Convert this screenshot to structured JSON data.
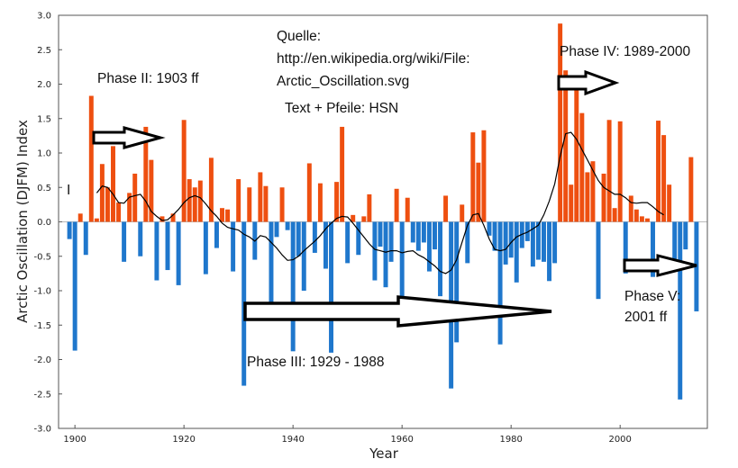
{
  "chart_data": {
    "type": "bar",
    "xlabel": "Year",
    "ylabel": "Arctic Oscillation (DJFM) Index",
    "xlim": [
      1897,
      2016
    ],
    "ylim": [
      -3.0,
      3.0
    ],
    "x_ticks": [
      1900,
      1920,
      1940,
      1960,
      1980,
      2000
    ],
    "y_ticks": [
      3.0,
      2.5,
      2.0,
      1.5,
      1.0,
      0.5,
      0.0,
      -0.5,
      -1.0,
      -1.5,
      -2.0,
      -2.5,
      -3.0
    ],
    "y_tick_labels": [
      "3.0",
      "2.5",
      "2.0",
      "1.5",
      "1.0",
      "0.5",
      "0.0",
      "-0.5",
      "-1.0",
      "-1.5",
      "-2.0",
      "-2.5",
      "-3.0"
    ],
    "grid": false,
    "colors": {
      "positive": "#ee4f10",
      "negative": "#1f77cc",
      "smooth": "#000000",
      "arrow_fill": "#ffffff",
      "arrow_stroke": "#000000"
    },
    "years": [
      1899,
      1900,
      1901,
      1902,
      1903,
      1904,
      1905,
      1906,
      1907,
      1908,
      1909,
      1910,
      1911,
      1912,
      1913,
      1914,
      1915,
      1916,
      1917,
      1918,
      1919,
      1920,
      1921,
      1922,
      1923,
      1924,
      1925,
      1926,
      1927,
      1928,
      1929,
      1930,
      1931,
      1932,
      1933,
      1934,
      1935,
      1936,
      1937,
      1938,
      1939,
      1940,
      1941,
      1942,
      1943,
      1944,
      1945,
      1946,
      1947,
      1948,
      1949,
      1950,
      1951,
      1952,
      1953,
      1954,
      1955,
      1956,
      1957,
      1958,
      1959,
      1960,
      1961,
      1962,
      1963,
      1964,
      1965,
      1966,
      1967,
      1968,
      1969,
      1970,
      1971,
      1972,
      1973,
      1974,
      1975,
      1976,
      1977,
      1978,
      1979,
      1980,
      1981,
      1982,
      1983,
      1984,
      1985,
      1986,
      1987,
      1988,
      1989,
      1990,
      1991,
      1992,
      1993,
      1994,
      1995,
      1996,
      1997,
      1998,
      1999,
      2000,
      2001,
      2002,
      2003,
      2004,
      2005,
      2006,
      2007,
      2008,
      2009,
      2010,
      2011,
      2012,
      2013,
      2014
    ],
    "values": [
      -0.25,
      -1.87,
      0.12,
      -0.48,
      1.83,
      0.05,
      0.84,
      0.5,
      1.1,
      0.28,
      -0.58,
      0.42,
      0.7,
      -0.5,
      1.38,
      0.9,
      -0.85,
      0.08,
      -0.7,
      0.12,
      -0.92,
      1.48,
      0.62,
      0.5,
      0.6,
      -0.76,
      0.93,
      -0.38,
      0.2,
      0.18,
      -0.72,
      0.62,
      -2.38,
      0.5,
      -0.55,
      0.72,
      0.52,
      -1.28,
      -0.22,
      0.5,
      -0.12,
      -1.88,
      -0.5,
      -1.0,
      0.85,
      -0.45,
      0.56,
      -0.68,
      -1.9,
      0.58,
      1.38,
      -0.6,
      0.1,
      -0.48,
      0.08,
      0.4,
      -0.85,
      -0.36,
      -0.95,
      -0.58,
      0.48,
      -1.52,
      0.35,
      -0.3,
      -0.42,
      -0.3,
      -0.72,
      -0.4,
      -1.08,
      0.38,
      -2.42,
      -1.75,
      0.25,
      -0.6,
      1.3,
      0.86,
      1.33,
      -0.2,
      -0.42,
      -1.78,
      -0.62,
      -0.52,
      -0.88,
      -0.38,
      -0.28,
      -0.65,
      -0.55,
      -0.58,
      -0.86,
      -0.6,
      2.88,
      2.2,
      0.54,
      2.08,
      1.58,
      0.72,
      0.88,
      -1.12,
      0.7,
      1.48,
      0.2,
      1.46,
      -0.75,
      0.38,
      0.18,
      0.08,
      0.05,
      -0.8,
      1.47,
      1.26,
      0.54,
      -0.62,
      -2.58,
      -0.4,
      0.94,
      -1.3
    ],
    "smoothed": [
      [
        1904,
        0.42
      ],
      [
        1905,
        0.52
      ],
      [
        1906,
        0.5
      ],
      [
        1907,
        0.4
      ],
      [
        1908,
        0.28
      ],
      [
        1909,
        0.27
      ],
      [
        1910,
        0.36
      ],
      [
        1911,
        0.38
      ],
      [
        1912,
        0.4
      ],
      [
        1913,
        0.3
      ],
      [
        1914,
        0.15
      ],
      [
        1915,
        0.08
      ],
      [
        1916,
        0.02
      ],
      [
        1917,
        0.03
      ],
      [
        1918,
        0.1
      ],
      [
        1919,
        0.18
      ],
      [
        1920,
        0.28
      ],
      [
        1921,
        0.35
      ],
      [
        1922,
        0.38
      ],
      [
        1923,
        0.35
      ],
      [
        1924,
        0.26
      ],
      [
        1925,
        0.16
      ],
      [
        1926,
        0.08
      ],
      [
        1927,
        -0.02
      ],
      [
        1928,
        -0.08
      ],
      [
        1929,
        -0.1
      ],
      [
        1930,
        -0.12
      ],
      [
        1931,
        -0.18
      ],
      [
        1932,
        -0.22
      ],
      [
        1933,
        -0.28
      ],
      [
        1934,
        -0.2
      ],
      [
        1935,
        -0.22
      ],
      [
        1936,
        -0.3
      ],
      [
        1937,
        -0.38
      ],
      [
        1938,
        -0.48
      ],
      [
        1939,
        -0.56
      ],
      [
        1940,
        -0.55
      ],
      [
        1941,
        -0.5
      ],
      [
        1942,
        -0.42
      ],
      [
        1943,
        -0.35
      ],
      [
        1944,
        -0.28
      ],
      [
        1945,
        -0.2
      ],
      [
        1946,
        -0.1
      ],
      [
        1947,
        -0.02
      ],
      [
        1948,
        0.05
      ],
      [
        1949,
        0.08
      ],
      [
        1950,
        0.07
      ],
      [
        1951,
        -0.02
      ],
      [
        1952,
        -0.12
      ],
      [
        1953,
        -0.22
      ],
      [
        1954,
        -0.32
      ],
      [
        1955,
        -0.4
      ],
      [
        1956,
        -0.42
      ],
      [
        1957,
        -0.44
      ],
      [
        1958,
        -0.42
      ],
      [
        1959,
        -0.42
      ],
      [
        1960,
        -0.45
      ],
      [
        1961,
        -0.43
      ],
      [
        1962,
        -0.42
      ],
      [
        1963,
        -0.48
      ],
      [
        1964,
        -0.52
      ],
      [
        1965,
        -0.58
      ],
      [
        1966,
        -0.64
      ],
      [
        1967,
        -0.72
      ],
      [
        1968,
        -0.75
      ],
      [
        1969,
        -0.7
      ],
      [
        1970,
        -0.55
      ],
      [
        1971,
        -0.3
      ],
      [
        1972,
        -0.05
      ],
      [
        1973,
        0.1
      ],
      [
        1974,
        0.12
      ],
      [
        1975,
        -0.05
      ],
      [
        1976,
        -0.25
      ],
      [
        1977,
        -0.4
      ],
      [
        1978,
        -0.42
      ],
      [
        1979,
        -0.4
      ],
      [
        1980,
        -0.3
      ],
      [
        1981,
        -0.22
      ],
      [
        1982,
        -0.18
      ],
      [
        1983,
        -0.15
      ],
      [
        1984,
        -0.1
      ],
      [
        1985,
        -0.05
      ],
      [
        1986,
        0.1
      ],
      [
        1987,
        0.3
      ],
      [
        1988,
        0.55
      ],
      [
        1989,
        0.95
      ],
      [
        1990,
        1.28
      ],
      [
        1991,
        1.3
      ],
      [
        1992,
        1.2
      ],
      [
        1993,
        1.05
      ],
      [
        1994,
        0.9
      ],
      [
        1995,
        0.75
      ],
      [
        1996,
        0.6
      ],
      [
        1997,
        0.5
      ],
      [
        1998,
        0.45
      ],
      [
        1999,
        0.4
      ],
      [
        2000,
        0.4
      ],
      [
        2001,
        0.35
      ],
      [
        2002,
        0.28
      ],
      [
        2003,
        0.27
      ],
      [
        2004,
        0.28
      ],
      [
        2005,
        0.28
      ],
      [
        2006,
        0.22
      ],
      [
        2007,
        0.15
      ],
      [
        2008,
        0.1
      ]
    ]
  },
  "annotations": {
    "source_label": "Quelle:",
    "source_url": "http://en.wikipedia.org/wiki/File:",
    "source_file": "Arctic_Oscillation.svg",
    "credit": "Text + Pfeile: HSN",
    "marker_i": "I",
    "phase2": "Phase II: 1903 ff",
    "phase3": "Phase III: 1929 - 1988",
    "phase4": "Phase IV: 1989-2000",
    "phase5_line1": "Phase V:",
    "phase5_line2": "2001 ff"
  }
}
